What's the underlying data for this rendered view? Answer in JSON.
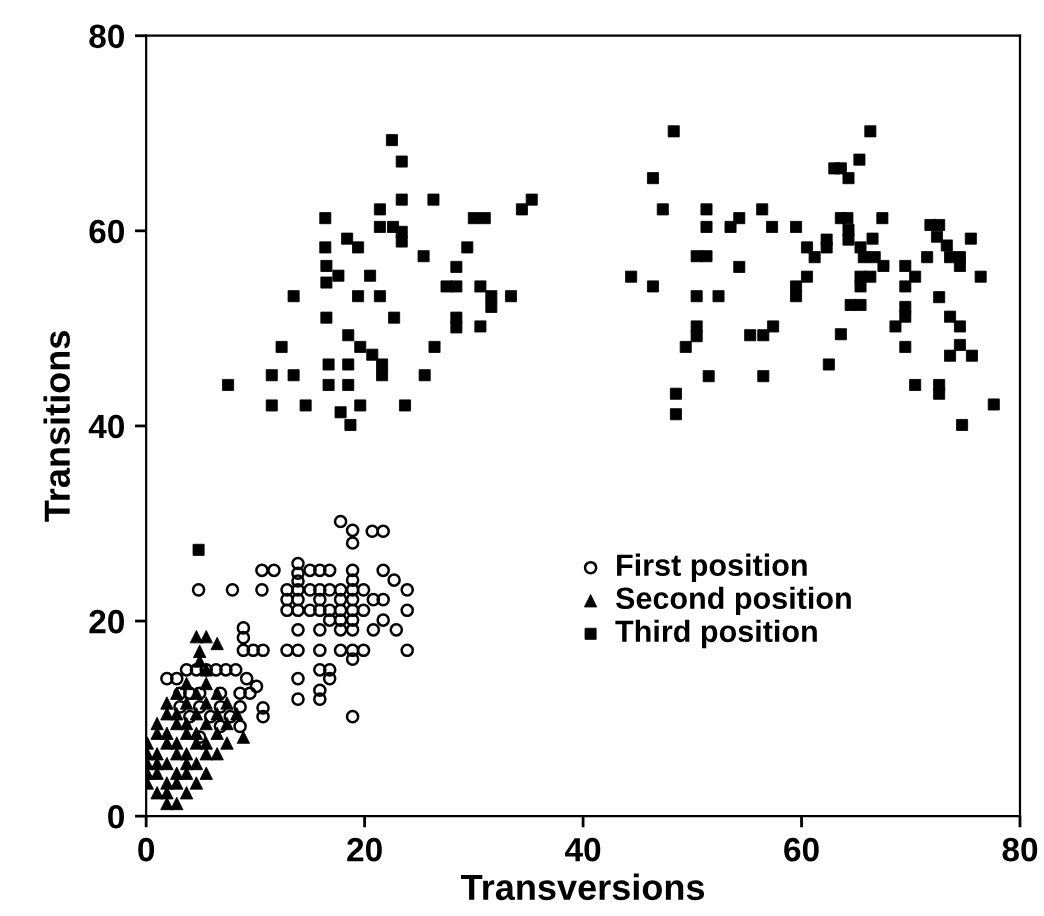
{
  "chart_data": {
    "type": "scatter",
    "xlabel": "Transversions",
    "ylabel": "Transitions",
    "xlim": [
      0,
      80
    ],
    "ylim": [
      0,
      80
    ],
    "xticks": [
      0,
      20,
      40,
      60,
      80
    ],
    "yticks": [
      0,
      20,
      40,
      60,
      80
    ],
    "grid": false,
    "legend": "lower right",
    "series": [
      {
        "name": "First position",
        "color": "#000000",
        "marker": "circle",
        "x": [
          17.8,
          18.9,
          18.9,
          20.7,
          21.7,
          10.6,
          11.7,
          13.9,
          13.9,
          13.9,
          15.0,
          15.9,
          16.8,
          18.9,
          18.9,
          21.7,
          22.7,
          4.8,
          7.9,
          10.6,
          12.9,
          13.9,
          15.0,
          15.9,
          16.8,
          17.8,
          18.9,
          19.9,
          12.9,
          13.9,
          15.9,
          17.8,
          18.9,
          20.8,
          21.7,
          23.9,
          23.9,
          12.9,
          13.9,
          15.0,
          15.9,
          16.8,
          17.8,
          18.9,
          19.9,
          16.8,
          17.8,
          18.9,
          21.7,
          22.9,
          20.8,
          8.9,
          8.9,
          13.9,
          15.9,
          17.8,
          18.9,
          8.9,
          9.8,
          10.7,
          12.9,
          13.9,
          15.9,
          17.8,
          18.9,
          19.9,
          18.9,
          23.9,
          15.9,
          16.8,
          16.8,
          13.9,
          13.9,
          15.9,
          15.9,
          18.9,
          10.7,
          10.7,
          1.9,
          2.8,
          3.7,
          4.6,
          5.5,
          6.4,
          7.3,
          8.2,
          9.2,
          10.1,
          3.1,
          4.0,
          4.9,
          6.8,
          8.6,
          9.5,
          3.1,
          4.9,
          6.8,
          8.6,
          4.0,
          5.9,
          7.7,
          6.8,
          8.6,
          4.9
        ],
        "values": [
          30.2,
          29.3,
          28.0,
          29.2,
          29.2,
          25.2,
          25.2,
          25.9,
          24.9,
          24.1,
          25.2,
          25.2,
          25.2,
          25.2,
          24.2,
          25.2,
          24.2,
          23.2,
          23.2,
          23.2,
          23.2,
          23.2,
          23.2,
          23.2,
          23.2,
          23.2,
          23.2,
          23.2,
          22.2,
          22.2,
          22.2,
          22.2,
          22.2,
          22.2,
          22.2,
          23.2,
          21.1,
          21.1,
          21.1,
          21.1,
          21.1,
          21.1,
          21.1,
          21.1,
          21.1,
          20.1,
          20.1,
          20.1,
          20.1,
          19.1,
          19.1,
          19.3,
          18.3,
          19.1,
          19.1,
          19.1,
          19.1,
          17.0,
          17.0,
          17.0,
          17.0,
          17.0,
          17.0,
          17.0,
          17.0,
          17.0,
          16.1,
          17.0,
          15.0,
          15.0,
          14.1,
          14.1,
          12.0,
          12.0,
          12.9,
          10.2,
          11.1,
          10.2,
          14.1,
          14.1,
          15.0,
          15.0,
          15.0,
          15.0,
          15.0,
          15.0,
          14.1,
          13.3,
          12.6,
          12.6,
          12.6,
          12.6,
          12.6,
          12.6,
          11.2,
          11.2,
          11.2,
          11.2,
          10.2,
          10.2,
          10.2,
          9.2,
          9.2,
          8.1
        ]
      },
      {
        "name": "Second position",
        "color": "#000000",
        "marker": "triangle",
        "x": [
          4.6,
          5.5,
          6.5,
          4.9,
          4.9,
          5.5,
          3.7,
          5.5,
          2.8,
          4.6,
          6.5,
          1.9,
          3.7,
          5.5,
          7.4,
          1.9,
          2.8,
          4.6,
          6.5,
          8.3,
          1.0,
          2.8,
          3.7,
          5.5,
          7.4,
          1.0,
          1.9,
          3.7,
          4.6,
          6.5,
          8.9,
          0.1,
          1.9,
          2.8,
          4.6,
          5.5,
          7.4,
          0.1,
          1.0,
          2.8,
          3.7,
          5.5,
          6.5,
          0.1,
          1.0,
          1.9,
          3.7,
          4.6,
          0.1,
          1.0,
          2.8,
          3.7,
          5.5,
          0.1,
          1.9,
          2.8,
          4.6,
          1.0,
          1.9,
          3.7,
          1.9,
          2.8
        ],
        "values": [
          18.4,
          18.4,
          17.7,
          16.9,
          15.9,
          15.0,
          13.6,
          13.6,
          12.6,
          12.6,
          12.6,
          11.6,
          11.6,
          11.6,
          11.6,
          10.5,
          10.5,
          10.5,
          10.5,
          10.5,
          9.5,
          9.5,
          9.5,
          9.5,
          9.5,
          8.5,
          8.5,
          8.5,
          8.5,
          8.5,
          8.1,
          7.5,
          7.5,
          7.5,
          7.5,
          7.5,
          7.5,
          6.4,
          6.4,
          6.4,
          6.4,
          6.4,
          6.4,
          5.4,
          5.4,
          5.4,
          5.4,
          5.4,
          4.4,
          4.4,
          4.4,
          4.4,
          4.4,
          3.4,
          3.4,
          3.4,
          3.4,
          2.4,
          2.4,
          2.4,
          1.3,
          1.3
        ]
      },
      {
        "name": "Third position",
        "color": "#000000",
        "marker": "square",
        "x": [
          22.5,
          23.4,
          23.4,
          26.3,
          16.4,
          21.4,
          21.4,
          22.6,
          23.4,
          23.4,
          30.0,
          31.0,
          35.3,
          34.4,
          16.4,
          18.4,
          19.4,
          25.4,
          29.4,
          16.5,
          17.6,
          20.5,
          28.4,
          16.5,
          27.5,
          28.4,
          30.6,
          13.5,
          19.4,
          21.4,
          31.6,
          31.6,
          33.4,
          16.5,
          22.7,
          28.4,
          28.4,
          30.6,
          18.5,
          19.6,
          12.4,
          26.4,
          20.7,
          21.6,
          21.6,
          16.7,
          18.5,
          11.5,
          13.5,
          25.5,
          7.5,
          16.7,
          18.5,
          11.5,
          14.6,
          19.6,
          23.7,
          17.8,
          18.7,
          4.8,
          48.3,
          46.4,
          47.3,
          51.3,
          51.3,
          53.5,
          54.3,
          56.4,
          57.3,
          50.4,
          51.3,
          54.3,
          44.4,
          46.4,
          50.4,
          52.4,
          50.4,
          50.4,
          49.4,
          55.3,
          56.5,
          57.4,
          51.5,
          56.5,
          48.5,
          48.5,
          66.3,
          65.3,
          63.0,
          63.6,
          64.3,
          59.5,
          63.6,
          64.2,
          64.3,
          64.3,
          67.4,
          62.3,
          62.3,
          60.5,
          61.2,
          66.5,
          65.4,
          65.7,
          66.7,
          67.5,
          60.5,
          59.5,
          59.5,
          65.4,
          66.3,
          65.4,
          64.5,
          65.4,
          63.6,
          62.5,
          71.8,
          72.6,
          72.4,
          73.3,
          75.5,
          71.5,
          73.6,
          74.5,
          74.5,
          69.5,
          70.4,
          69.5,
          76.4,
          72.6,
          69.5,
          69.5,
          68.6,
          73.6,
          74.5,
          69.5,
          74.5,
          73.6,
          75.6,
          70.4,
          72.6,
          72.6,
          77.6,
          74.7
        ],
        "values": [
          69.3,
          67.1,
          63.2,
          63.2,
          61.3,
          62.2,
          60.4,
          60.4,
          59.9,
          58.9,
          61.3,
          61.3,
          63.2,
          62.2,
          58.3,
          59.2,
          58.3,
          57.4,
          58.3,
          56.4,
          55.4,
          55.4,
          56.3,
          54.7,
          54.3,
          54.3,
          54.3,
          53.3,
          53.3,
          53.3,
          53.3,
          52.2,
          53.3,
          51.1,
          51.1,
          51.1,
          50.1,
          50.2,
          49.3,
          48.1,
          48.1,
          48.1,
          47.3,
          46.3,
          45.2,
          46.3,
          46.3,
          45.2,
          45.2,
          45.2,
          44.2,
          44.2,
          44.2,
          42.1,
          42.1,
          42.1,
          42.1,
          41.4,
          40.1,
          27.3,
          70.2,
          65.4,
          62.2,
          62.2,
          60.4,
          60.4,
          61.3,
          62.2,
          60.4,
          57.4,
          57.4,
          56.3,
          55.3,
          54.3,
          53.3,
          53.3,
          50.2,
          49.2,
          48.1,
          49.3,
          49.3,
          50.2,
          45.1,
          45.1,
          43.3,
          41.2,
          70.2,
          67.3,
          66.4,
          66.4,
          65.4,
          60.4,
          61.3,
          61.3,
          60.1,
          59.1,
          61.3,
          59.1,
          58.3,
          58.3,
          57.3,
          59.2,
          58.3,
          57.3,
          57.3,
          56.4,
          55.3,
          54.3,
          53.3,
          55.3,
          55.3,
          54.3,
          52.4,
          52.4,
          49.4,
          46.3,
          60.6,
          60.6,
          59.4,
          58.5,
          59.2,
          57.3,
          57.3,
          57.3,
          56.4,
          56.4,
          55.3,
          54.3,
          55.3,
          53.2,
          52.2,
          51.2,
          50.2,
          51.2,
          50.2,
          48.1,
          48.3,
          47.2,
          47.2,
          44.2,
          44.2,
          43.3,
          42.2,
          40.1
        ]
      }
    ]
  }
}
